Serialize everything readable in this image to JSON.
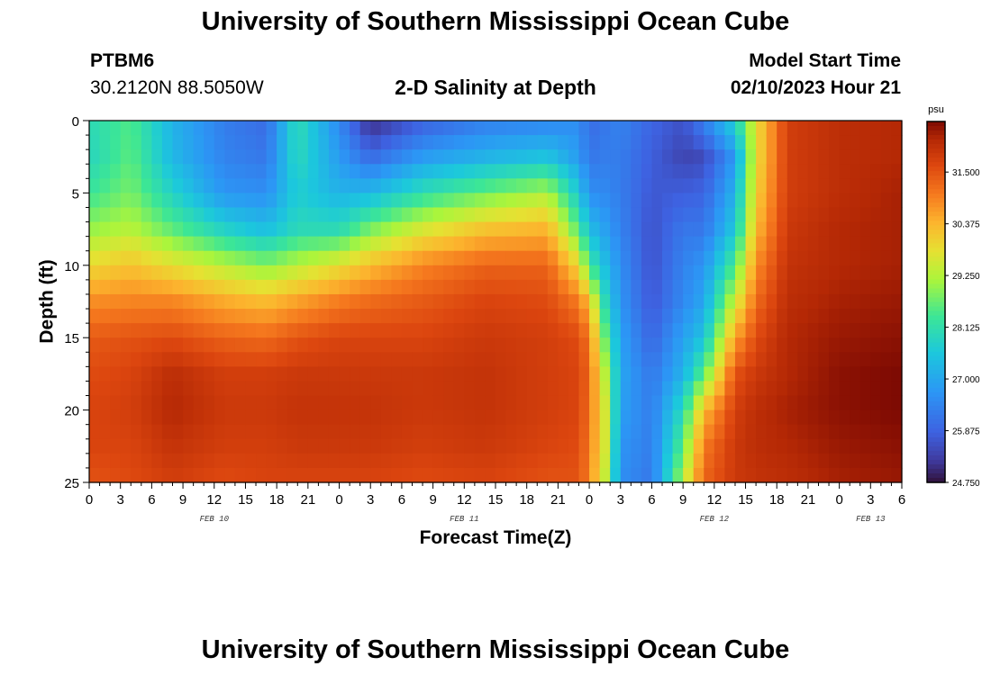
{
  "header": {
    "title": "University of Southern Mississippi Ocean Cube",
    "station_id": "PTBM6",
    "station_coords": "30.2120N  88.5050W",
    "plot_title": "2-D Salinity at Depth",
    "model_start_label": "Model Start Time",
    "model_start_value": "02/10/2023 Hour 21"
  },
  "footer": {
    "title": "University of Southern Mississippi Ocean Cube"
  },
  "chart_data": {
    "type": "heatmap",
    "title": "2-D Salinity at Depth",
    "xlabel": "Forecast Time(Z)",
    "ylabel": "Depth (ft)",
    "x_range_hours": [
      0,
      78
    ],
    "y_range": [
      0,
      25
    ],
    "y_ticks": [
      0,
      5,
      10,
      15,
      20,
      25
    ],
    "x_tick_hours": [
      0,
      3,
      6,
      9,
      12,
      15,
      18,
      21,
      24,
      27,
      30,
      33,
      36,
      39,
      42,
      45,
      48,
      51,
      54,
      57,
      60,
      63,
      66,
      69,
      72,
      75,
      78
    ],
    "x_tick_labels": [
      "0",
      "3",
      "6",
      "9",
      "12",
      "15",
      "18",
      "21",
      "0",
      "3",
      "6",
      "9",
      "12",
      "15",
      "18",
      "21",
      "0",
      "3",
      "6",
      "9",
      "12",
      "15",
      "18",
      "21",
      "0",
      "3",
      "6"
    ],
    "day_labels": [
      {
        "text": "FEB 10",
        "hour": 12
      },
      {
        "text": "FEB 11",
        "hour": 36
      },
      {
        "text": "FEB 12",
        "hour": 60
      },
      {
        "text": "FEB 13",
        "hour": 75
      }
    ],
    "colorbar": {
      "unit": "psu",
      "min": 24.75,
      "max": 32.6,
      "tick_values": [
        24.75,
        25.875,
        27.0,
        28.125,
        29.25,
        30.375,
        31.5
      ],
      "tick_labels": [
        "24.750",
        "25.875",
        "27.000",
        "28.125",
        "29.250",
        "30.375",
        "31.500"
      ]
    },
    "grid_depths": [
      0,
      2.5,
      5,
      7.5,
      10,
      12.5,
      15,
      17.5,
      20,
      22.5,
      25
    ],
    "profiles": [
      {
        "hour": 0,
        "salinity": [
          28.0,
          27.9,
          28.3,
          29.0,
          29.9,
          30.8,
          31.4,
          31.6,
          31.7,
          31.7,
          31.5
        ]
      },
      {
        "hour": 4,
        "salinity": [
          28.5,
          28.6,
          28.8,
          29.3,
          30.2,
          30.9,
          31.5,
          31.7,
          31.8,
          31.7,
          31.6
        ]
      },
      {
        "hour": 8,
        "salinity": [
          27.2,
          27.3,
          27.8,
          28.6,
          29.8,
          30.9,
          31.6,
          32.1,
          32.2,
          32.0,
          31.8
        ]
      },
      {
        "hour": 13,
        "salinity": [
          26.3,
          26.4,
          26.7,
          27.8,
          29.3,
          30.5,
          31.3,
          31.8,
          31.9,
          31.8,
          31.6
        ]
      },
      {
        "hour": 17,
        "salinity": [
          26.0,
          26.2,
          26.6,
          27.4,
          28.9,
          30.3,
          31.2,
          31.8,
          31.9,
          31.8,
          31.7
        ]
      },
      {
        "hour": 20,
        "salinity": [
          28.1,
          28.0,
          27.7,
          28.0,
          29.3,
          30.6,
          31.5,
          31.9,
          32.0,
          31.9,
          31.7
        ]
      },
      {
        "hour": 24,
        "salinity": [
          26.5,
          26.8,
          27.2,
          28.0,
          29.8,
          31.0,
          31.7,
          31.9,
          32.0,
          31.9,
          31.7
        ]
      },
      {
        "hour": 27,
        "salinity": [
          25.0,
          26.0,
          27.3,
          28.8,
          30.3,
          31.2,
          31.7,
          31.9,
          32.0,
          31.9,
          31.7
        ]
      },
      {
        "hour": 32,
        "salinity": [
          25.8,
          26.8,
          28.1,
          29.6,
          30.9,
          31.4,
          31.7,
          31.9,
          31.9,
          31.8,
          31.6
        ]
      },
      {
        "hour": 38,
        "salinity": [
          26.3,
          27.2,
          28.7,
          30.2,
          31.3,
          31.7,
          31.9,
          32.0,
          32.0,
          31.9,
          31.7
        ]
      },
      {
        "hour": 44,
        "salinity": [
          26.4,
          27.5,
          29.2,
          30.4,
          31.3,
          31.6,
          31.8,
          31.8,
          31.8,
          31.7,
          31.5
        ]
      },
      {
        "hour": 47,
        "salinity": [
          26.6,
          26.8,
          27.6,
          28.5,
          29.9,
          31.0,
          31.6,
          31.7,
          31.7,
          31.6,
          31.5
        ]
      },
      {
        "hour": 48,
        "salinity": [
          26.0,
          26.2,
          26.6,
          27.4,
          28.4,
          30.2,
          31.0,
          31.2,
          31.1,
          31.0,
          30.9
        ]
      },
      {
        "hour": 49.5,
        "salinity": [
          26.2,
          26.3,
          26.5,
          26.9,
          27.4,
          28.0,
          28.7,
          29.3,
          29.6,
          29.6,
          29.4
        ]
      },
      {
        "hour": 51,
        "salinity": [
          26.4,
          26.3,
          26.3,
          26.4,
          26.6,
          26.7,
          26.9,
          27.0,
          26.9,
          26.7,
          26.6
        ]
      },
      {
        "hour": 54,
        "salinity": [
          25.9,
          25.8,
          25.7,
          25.6,
          25.6,
          25.7,
          25.9,
          26.2,
          26.3,
          26.3,
          26.2
        ]
      },
      {
        "hour": 57,
        "salinity": [
          25.6,
          25.4,
          25.8,
          26.2,
          26.4,
          26.5,
          26.9,
          27.2,
          28.0,
          28.6,
          29.3
        ]
      },
      {
        "hour": 59,
        "salinity": [
          26.4,
          25.5,
          25.9,
          26.2,
          26.7,
          27.0,
          27.5,
          28.6,
          30.3,
          31.0,
          31.3
        ]
      },
      {
        "hour": 62,
        "salinity": [
          27.8,
          26.8,
          27.2,
          27.6,
          28.5,
          29.5,
          30.6,
          31.5,
          31.8,
          31.9,
          31.9
        ]
      },
      {
        "hour": 64,
        "salinity": [
          29.8,
          29.8,
          30.0,
          30.3,
          30.8,
          31.2,
          31.6,
          31.9,
          32.1,
          32.1,
          32.0
        ]
      },
      {
        "hour": 67,
        "salinity": [
          31.8,
          31.8,
          31.8,
          31.9,
          32.0,
          32.1,
          32.2,
          32.2,
          32.3,
          32.2,
          32.1
        ]
      },
      {
        "hour": 72,
        "salinity": [
          32.1,
          32.1,
          32.1,
          32.2,
          32.2,
          32.3,
          32.4,
          32.5,
          32.5,
          32.4,
          32.3
        ]
      },
      {
        "hour": 78,
        "salinity": [
          32.2,
          32.2,
          32.3,
          32.3,
          32.3,
          32.4,
          32.5,
          32.6,
          32.6,
          32.5,
          32.4
        ]
      }
    ]
  }
}
